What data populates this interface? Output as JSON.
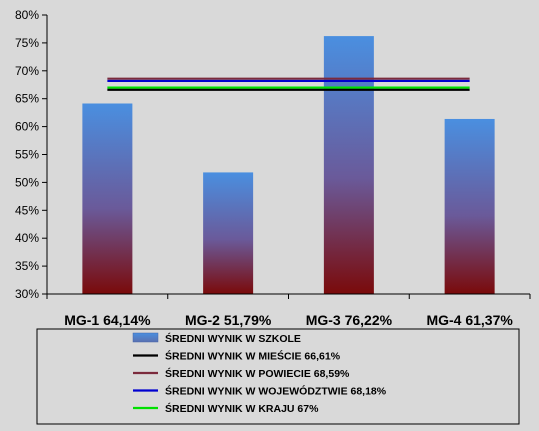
{
  "chart_data": {
    "type": "bar",
    "categories": [
      "MG-1 64,14%",
      "MG-2 51,79%",
      "MG-3 76,22%",
      "MG-4 61,37%"
    ],
    "values": [
      64.14,
      51.79,
      76.22,
      61.37
    ],
    "ylim": [
      30,
      80
    ],
    "y_ticks": [
      "30%",
      "35%",
      "40%",
      "45%",
      "50%",
      "55%",
      "60%",
      "65%",
      "70%",
      "75%",
      "80%"
    ],
    "grid": false,
    "legend_position": "bottom",
    "bar_series": {
      "name": "ŚREDNI WYNIK W SZKOLE",
      "color_top": "#4a8fe0",
      "color_bottom": "#7a0a0a"
    },
    "reference_lines": [
      {
        "name": "ŚREDNI WYNIK W MIEŚCIE 66,61%",
        "value": 66.61,
        "color": "#000000"
      },
      {
        "name": "ŚREDNI WYNIK W POWIECIE 68,59%",
        "value": 68.59,
        "color": "#7b2a3c"
      },
      {
        "name": "ŚREDNI WYNIK W WOJEWÓDZTWIE 68,18%",
        "value": 68.18,
        "color": "#0000d0"
      },
      {
        "name": "ŚREDNI WYNIK W KRAJU 67%",
        "value": 67.0,
        "color": "#00e000"
      }
    ]
  }
}
